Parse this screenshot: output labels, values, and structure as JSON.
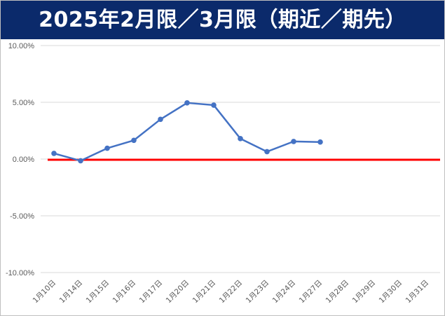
{
  "chart_data": {
    "type": "line",
    "title": "2025年2月限／3月限（期近／期先）",
    "xlabel": "",
    "ylabel": "",
    "ylim": [
      -10,
      10
    ],
    "y_ticks": [
      "10.00%",
      "5.00%",
      "0.00%",
      "-5.00%",
      "-10.00%"
    ],
    "y_tick_values": [
      10,
      5,
      0,
      -5,
      -10
    ],
    "categories": [
      "1月10日",
      "1月14日",
      "1月15日",
      "1月16日",
      "1月17日",
      "1月20日",
      "1月21日",
      "1月22日",
      "1月23日",
      "1月24日",
      "1月27日",
      "1月28日",
      "1月29日",
      "1月30日",
      "1月31日"
    ],
    "series": [
      {
        "values": [
          0.5,
          -0.15,
          0.95,
          1.65,
          3.5,
          4.95,
          4.75,
          1.8,
          0.65,
          1.55,
          1.5,
          null,
          null,
          null,
          null
        ]
      }
    ],
    "reference_line": {
      "value": 0
    },
    "grid": "horizontal",
    "legend": "none",
    "colors": {
      "series": "#4472c4",
      "reference": "#ff0000",
      "grid": "#d9d9d9",
      "banner": "#0b2a6b"
    }
  }
}
